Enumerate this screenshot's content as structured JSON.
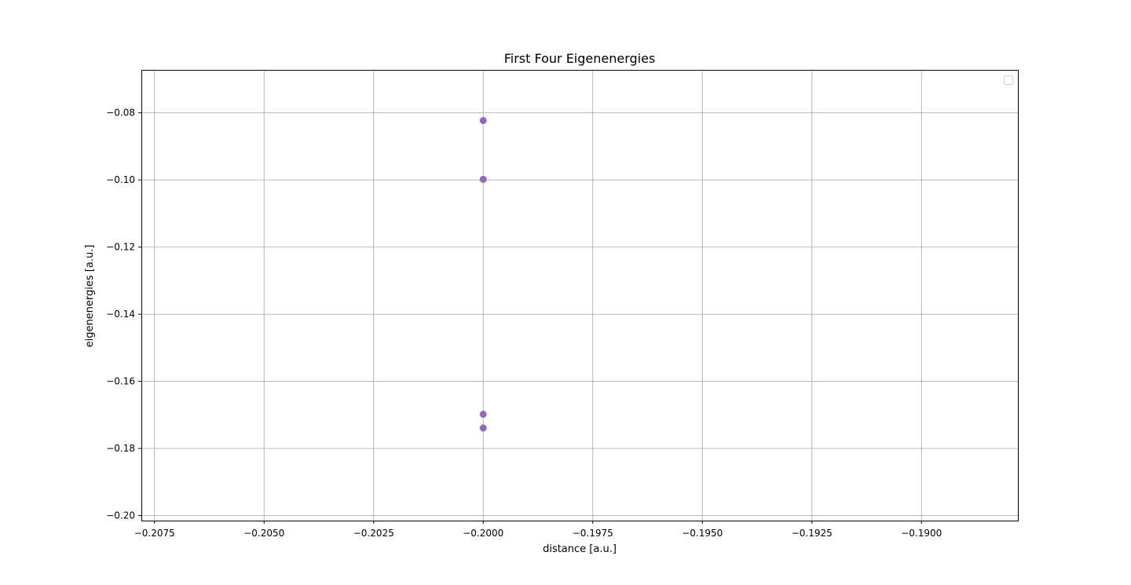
{
  "chart_data": {
    "type": "scatter",
    "title": "First Four Eigenenergies",
    "xlabel": "distance [a.u.]",
    "ylabel": "eigenenergies [a.u.]",
    "xlim": [
      -0.2078,
      -0.1878
    ],
    "ylim": [
      -0.2015,
      -0.0672
    ],
    "xticks": [
      -0.2075,
      -0.205,
      -0.2025,
      -0.2,
      -0.1975,
      -0.195,
      -0.1925,
      -0.19
    ],
    "xtick_labels": [
      "−0.2075",
      "−0.2050",
      "−0.2025",
      "−0.2000",
      "−0.1975",
      "−0.1950",
      "−0.1925",
      "−0.1900"
    ],
    "yticks": [
      -0.08,
      -0.1,
      -0.12,
      -0.14,
      -0.16,
      -0.18,
      -0.2
    ],
    "ytick_labels": [
      "−0.08",
      "−0.10",
      "−0.12",
      "−0.14",
      "−0.16",
      "−0.18",
      "−0.20"
    ],
    "grid": true,
    "legend": "upper right, empty",
    "marker_color": "#9467bd",
    "points": [
      {
        "x": -0.2,
        "y": -0.0823
      },
      {
        "x": -0.2,
        "y": -0.0998
      },
      {
        "x": -0.2,
        "y": -0.1698
      },
      {
        "x": -0.2,
        "y": -0.1739
      }
    ]
  }
}
